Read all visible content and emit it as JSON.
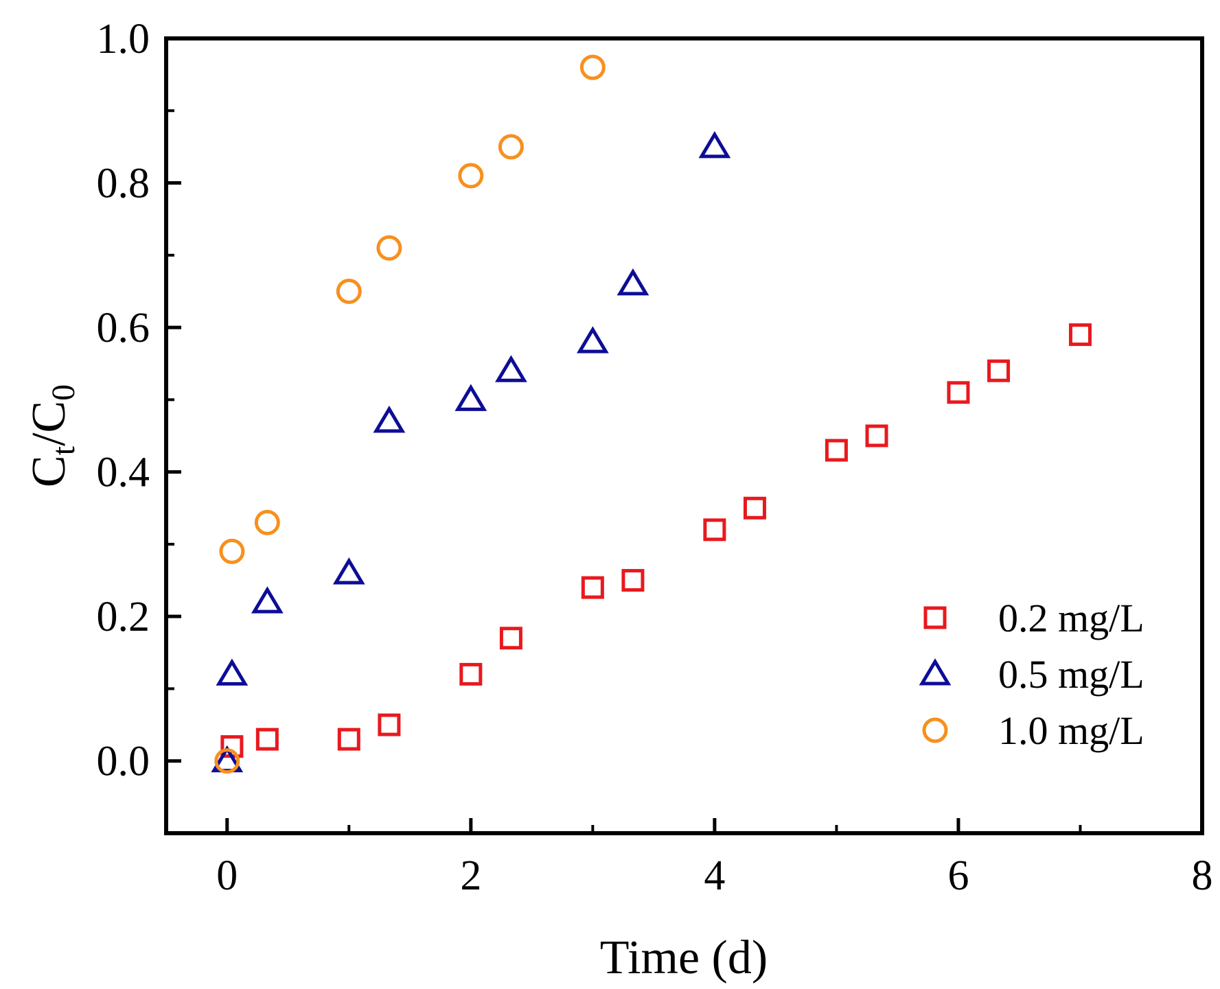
{
  "chart_data": {
    "type": "scatter",
    "xlabel": "Time (d)",
    "ylabel": {
      "main": "C",
      "sub1": "t",
      "slash": "/",
      "main2": "C",
      "sub2": "0"
    },
    "xlim": [
      -0.5,
      8
    ],
    "ylim": [
      -0.1,
      1.0
    ],
    "x_ticks": [
      0,
      2,
      4,
      6,
      8
    ],
    "x_tick_labels": [
      "0",
      "2",
      "4",
      "6",
      "8"
    ],
    "y_ticks": [
      0.0,
      0.2,
      0.4,
      0.6,
      0.8,
      1.0
    ],
    "y_tick_labels": [
      "0.0",
      "0.2",
      "0.4",
      "0.6",
      "0.8",
      "1.0"
    ],
    "grid": false,
    "legend_position": "bottom-right",
    "series": [
      {
        "name": "0.2 mg/L",
        "marker": "square",
        "color": "#e8191e",
        "points": [
          [
            0.04,
            0.02
          ],
          [
            0.33,
            0.03
          ],
          [
            1.0,
            0.03
          ],
          [
            1.33,
            0.05
          ],
          [
            2.0,
            0.12
          ],
          [
            2.33,
            0.17
          ],
          [
            3.0,
            0.24
          ],
          [
            3.33,
            0.25
          ],
          [
            4.0,
            0.32
          ],
          [
            4.33,
            0.35
          ],
          [
            5.0,
            0.43
          ],
          [
            5.33,
            0.45
          ],
          [
            6.0,
            0.51
          ],
          [
            6.33,
            0.54
          ],
          [
            7.0,
            0.59
          ]
        ]
      },
      {
        "name": "0.5 mg/L",
        "marker": "triangle",
        "color": "#0d0d96",
        "points": [
          [
            0.0,
            0.0
          ],
          [
            0.04,
            0.12
          ],
          [
            0.33,
            0.22
          ],
          [
            1.0,
            0.26
          ],
          [
            1.33,
            0.47
          ],
          [
            2.0,
            0.5
          ],
          [
            2.33,
            0.54
          ],
          [
            3.0,
            0.58
          ],
          [
            3.33,
            0.66
          ],
          [
            4.0,
            0.85
          ]
        ]
      },
      {
        "name": "1.0 mg/L",
        "marker": "circle",
        "color": "#f7901e",
        "points": [
          [
            0.0,
            0.0
          ],
          [
            0.04,
            0.29
          ],
          [
            0.33,
            0.33
          ],
          [
            1.0,
            0.65
          ],
          [
            1.33,
            0.71
          ],
          [
            2.0,
            0.81
          ],
          [
            2.33,
            0.85
          ],
          [
            3.0,
            0.96
          ]
        ]
      }
    ]
  }
}
